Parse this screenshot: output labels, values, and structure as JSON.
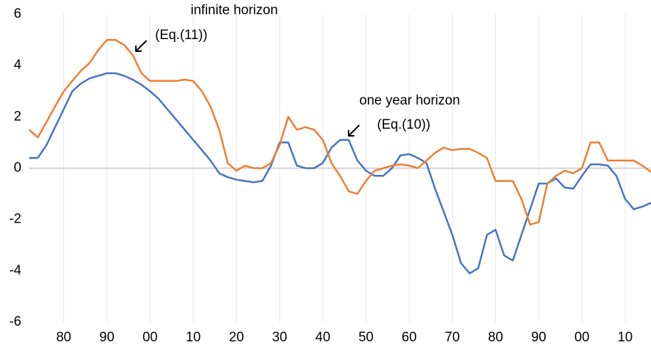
{
  "chart_data": {
    "type": "line",
    "annotations": [
      "infinite horizon",
      "(Eq.(11))",
      "one year horizon",
      "(Eq.(10))"
    ],
    "categories": [
      null,
      null,
      null,
      null,
      "80",
      null,
      null,
      null,
      null,
      "90",
      null,
      null,
      null,
      null,
      "00",
      null,
      null,
      null,
      null,
      "10",
      null,
      null,
      null,
      null,
      "20",
      null,
      null,
      null,
      null,
      "30",
      null,
      null,
      null,
      null,
      "40",
      null,
      null,
      null,
      null,
      "50",
      null,
      null,
      null,
      null,
      "60",
      null,
      null,
      null,
      null,
      "70",
      null,
      null,
      null,
      null,
      "80",
      null,
      null,
      null,
      null,
      "90",
      null,
      null,
      null,
      null,
      "00",
      null,
      null,
      null,
      null,
      "10",
      null,
      null,
      null
    ],
    "series": [
      {
        "color": "#4472c4",
        "values": [
          0.4,
          0.4,
          0.9,
          1.6,
          2.3,
          3.0,
          3.3,
          3.5,
          3.6,
          3.7,
          3.7,
          3.6,
          3.45,
          3.25,
          3.0,
          2.7,
          2.3,
          1.9,
          1.5,
          1.1,
          0.7,
          0.3,
          -0.2,
          -0.35,
          -0.45,
          -0.5,
          -0.55,
          -0.5,
          0.1,
          1.0,
          1.0,
          0.1,
          0.0,
          0.0,
          0.2,
          0.8,
          1.1,
          1.1,
          0.3,
          -0.1,
          -0.3,
          -0.3,
          0.0,
          0.5,
          0.55,
          0.4,
          0.2,
          -0.8,
          -1.7,
          -2.6,
          -3.7,
          -4.1,
          -3.9,
          -2.6,
          -2.4,
          -3.4,
          -3.6,
          -2.6,
          -1.6,
          -0.6,
          -0.6,
          -0.4,
          -0.75,
          -0.8,
          -0.3,
          0.15,
          0.15,
          0.1,
          -0.3,
          -1.2,
          -1.6,
          -1.5,
          -1.35
        ]
      },
      {
        "color": "#ed7d31",
        "values": [
          1.5,
          1.2,
          1.8,
          2.4,
          3.0,
          3.4,
          3.8,
          4.1,
          4.6,
          5.0,
          5.0,
          4.8,
          4.4,
          3.7,
          3.4,
          3.4,
          3.4,
          3.4,
          3.45,
          3.4,
          3.0,
          2.4,
          1.5,
          0.2,
          -0.1,
          0.1,
          0.0,
          0.0,
          0.2,
          0.9,
          2.0,
          1.5,
          1.6,
          1.5,
          1.1,
          0.2,
          -0.3,
          -0.9,
          -1.0,
          -0.5,
          -0.1,
          0.0,
          0.1,
          0.15,
          0.1,
          0.0,
          0.3,
          0.6,
          0.8,
          0.7,
          0.75,
          0.75,
          0.6,
          0.4,
          -0.5,
          -0.5,
          -0.5,
          -1.2,
          -2.2,
          -2.1,
          -0.6,
          -0.3,
          -0.1,
          -0.2,
          0.0,
          1.0,
          1.0,
          0.3,
          0.3,
          0.3,
          0.3,
          0.1,
          -0.15
        ]
      }
    ],
    "ylim": [
      -6,
      6
    ],
    "yticks": [
      -6,
      -4,
      -2,
      0,
      2,
      4,
      6
    ],
    "xgrid": true
  }
}
